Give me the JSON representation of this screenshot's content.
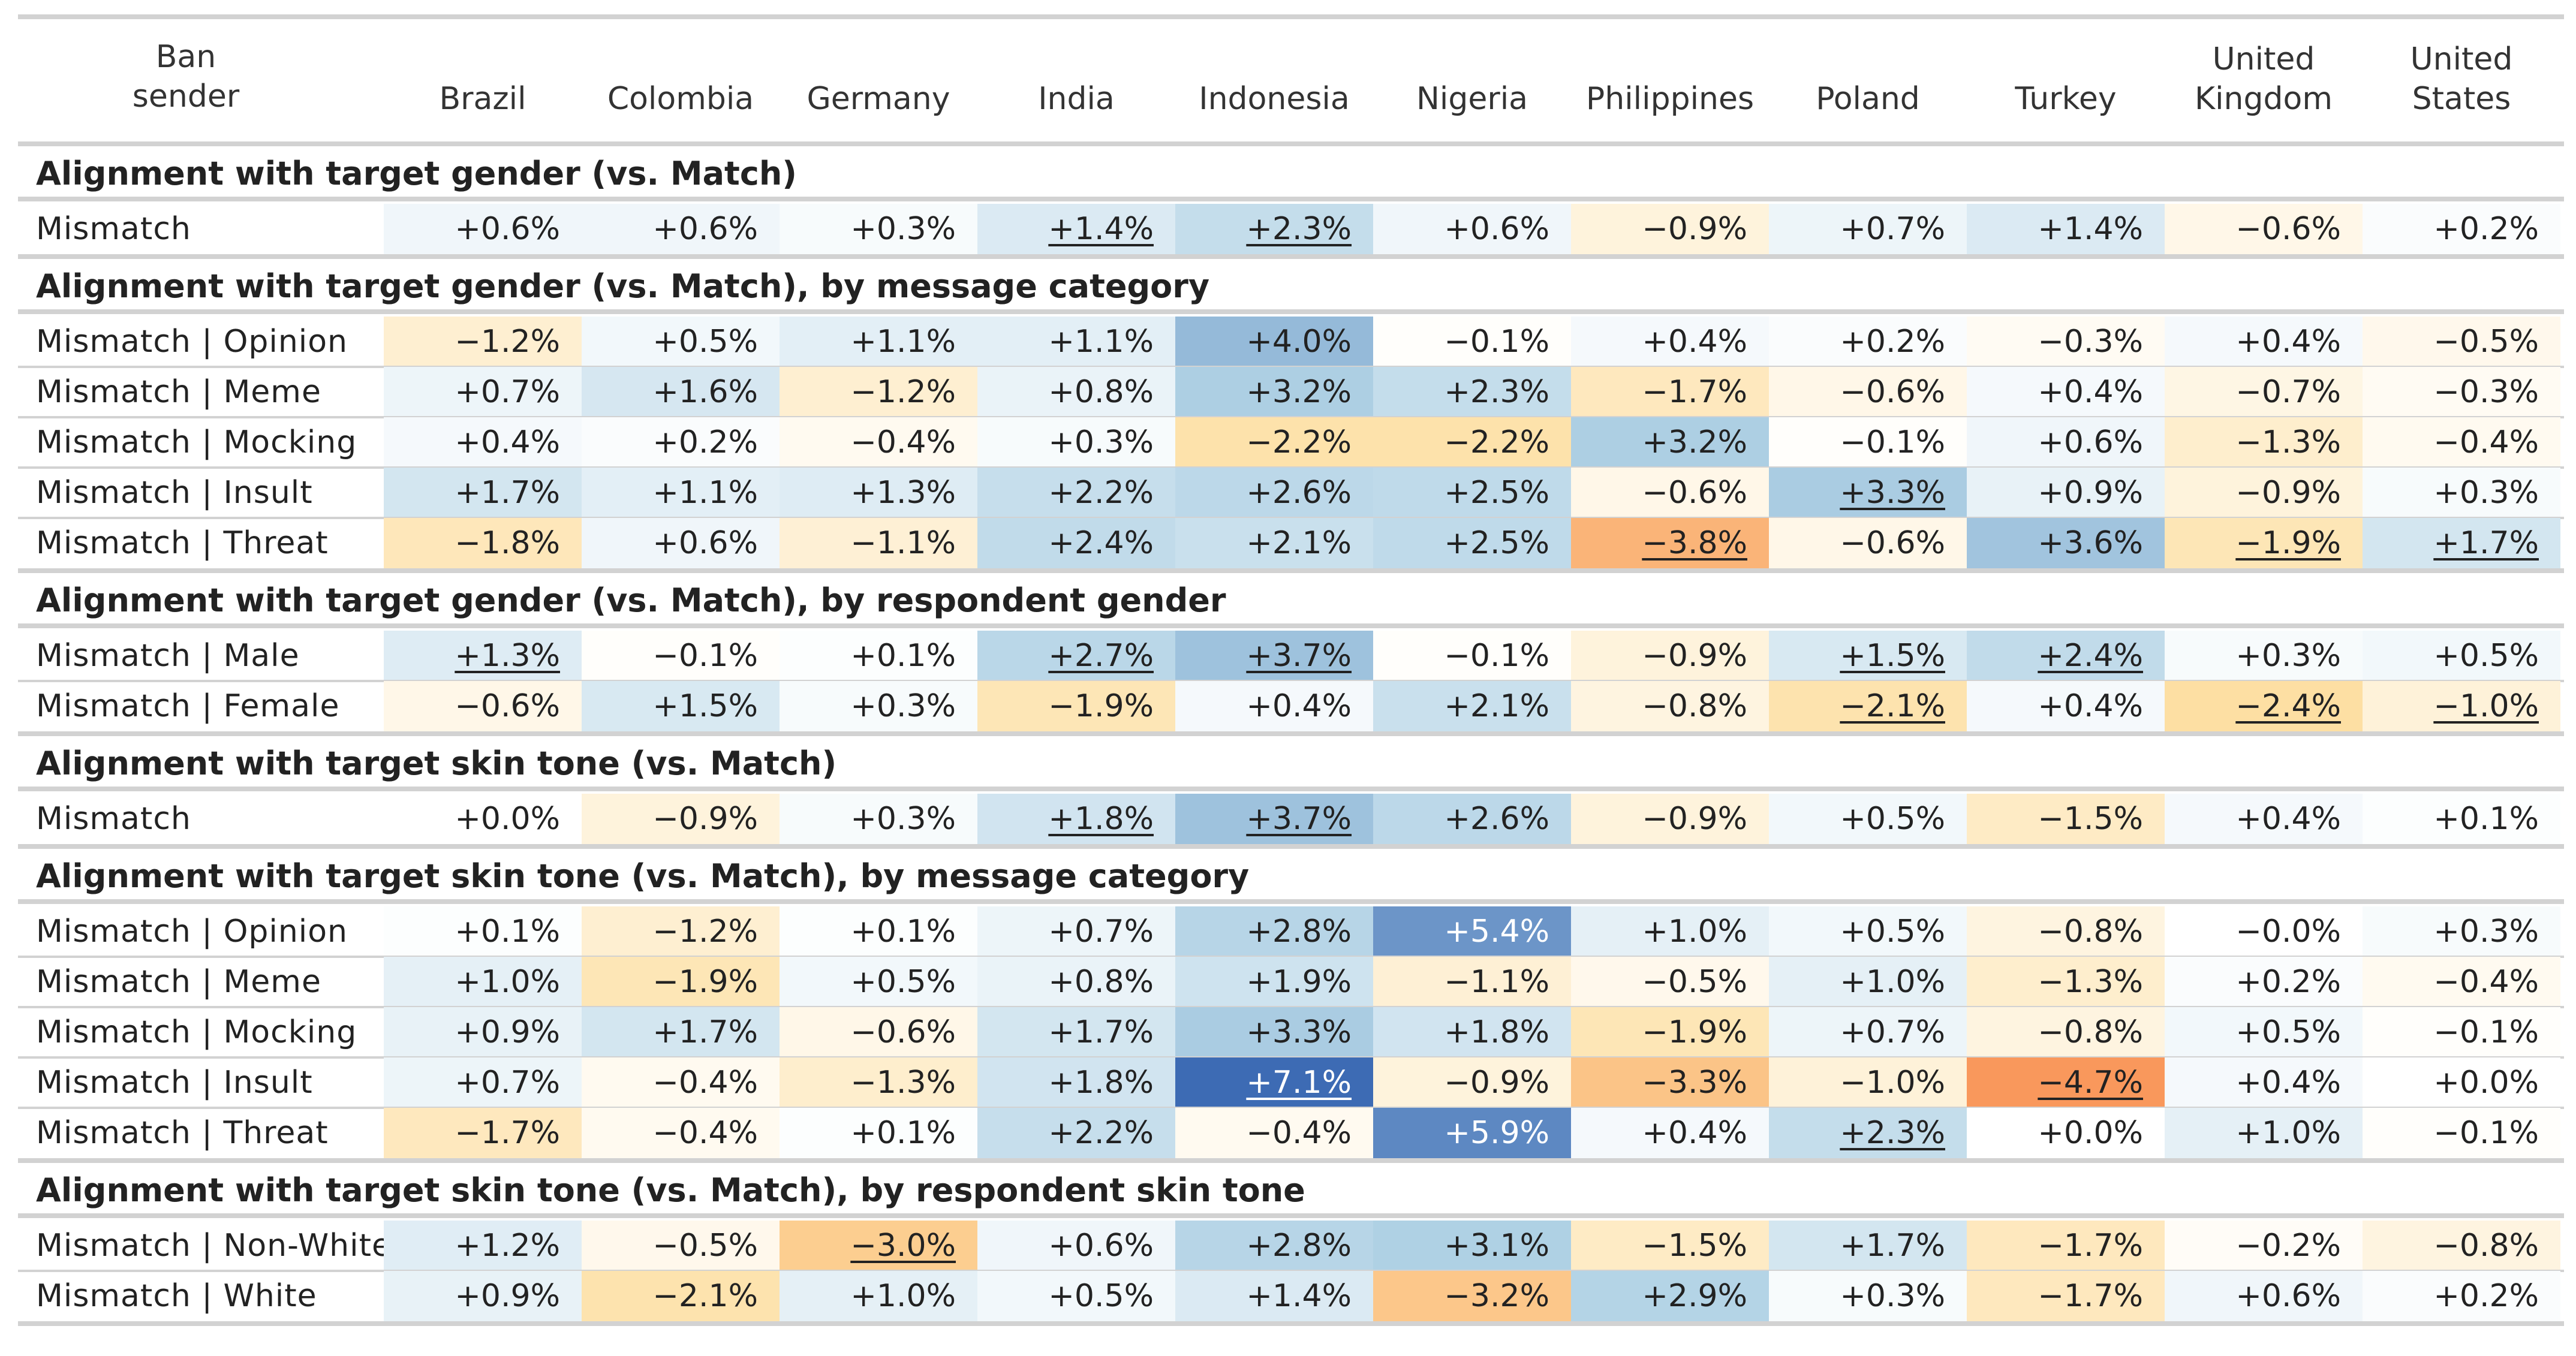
{
  "header": {
    "first_col": [
      "Ban",
      "sender"
    ],
    "countries": [
      [
        "Brazil"
      ],
      [
        "Colombia"
      ],
      [
        "Germany"
      ],
      [
        "India"
      ],
      [
        "Indonesia"
      ],
      [
        "Nigeria"
      ],
      [
        "Philippines"
      ],
      [
        "Poland"
      ],
      [
        "Turkey"
      ],
      [
        "United",
        "Kingdom"
      ],
      [
        "United",
        "States"
      ]
    ]
  },
  "chart_data": {
    "type": "heatmap",
    "columns": [
      "Brazil",
      "Colombia",
      "Germany",
      "India",
      "Indonesia",
      "Nigeria",
      "Philippines",
      "Poland",
      "Turkey",
      "United Kingdom",
      "United States"
    ],
    "color_scale": {
      "negative": "#f77f44",
      "zero": "#ffffff",
      "positive": "#3d6bb4"
    },
    "sections": [
      {
        "title": "Alignment with target gender (vs. Match)",
        "rows": [
          {
            "label": "Mismatch",
            "values": [
              0.6,
              0.6,
              0.3,
              1.4,
              2.3,
              0.6,
              -0.9,
              0.7,
              1.4,
              -0.6,
              0.2
            ],
            "underlined": [
              3,
              4
            ]
          }
        ]
      },
      {
        "title": "Alignment with target gender (vs. Match), by message category",
        "rows": [
          {
            "label": "Mismatch | Opinion",
            "values": [
              -1.2,
              0.5,
              1.1,
              1.1,
              4.0,
              -0.1,
              0.4,
              0.2,
              -0.3,
              0.4,
              -0.5
            ],
            "underlined": []
          },
          {
            "label": "Mismatch | Meme",
            "values": [
              0.7,
              1.6,
              -1.2,
              0.8,
              3.2,
              2.3,
              -1.7,
              -0.6,
              0.4,
              -0.7,
              -0.3
            ],
            "underlined": []
          },
          {
            "label": "Mismatch | Mocking",
            "values": [
              0.4,
              0.2,
              -0.4,
              0.3,
              -2.2,
              -2.2,
              3.2,
              -0.1,
              0.6,
              -1.3,
              -0.4
            ],
            "underlined": []
          },
          {
            "label": "Mismatch | Insult",
            "values": [
              1.7,
              1.1,
              1.3,
              2.2,
              2.6,
              2.5,
              -0.6,
              3.3,
              0.9,
              -0.9,
              0.3
            ],
            "underlined": [
              7
            ]
          },
          {
            "label": "Mismatch | Threat",
            "values": [
              -1.8,
              0.6,
              -1.1,
              2.4,
              2.1,
              2.5,
              -3.8,
              -0.6,
              3.6,
              -1.9,
              1.7
            ],
            "underlined": [
              6,
              9,
              10
            ]
          }
        ]
      },
      {
        "title": "Alignment with target gender (vs. Match), by respondent gender",
        "rows": [
          {
            "label": "Mismatch | Male",
            "values": [
              1.3,
              -0.1,
              0.1,
              2.7,
              3.7,
              -0.1,
              -0.9,
              1.5,
              2.4,
              0.3,
              0.5
            ],
            "underlined": [
              0,
              3,
              4,
              7,
              8
            ]
          },
          {
            "label": "Mismatch | Female",
            "values": [
              -0.6,
              1.5,
              0.3,
              -1.9,
              0.4,
              2.1,
              -0.8,
              -2.1,
              0.4,
              -2.4,
              -1.0
            ],
            "underlined": [
              7,
              9,
              10
            ]
          }
        ]
      },
      {
        "title": "Alignment with target skin tone (vs. Match)",
        "rows": [
          {
            "label": "Mismatch",
            "values": [
              0.0,
              -0.9,
              0.3,
              1.8,
              3.7,
              2.6,
              -0.9,
              0.5,
              -1.5,
              0.4,
              0.1
            ],
            "underlined": [
              3,
              4
            ]
          }
        ]
      },
      {
        "title": "Alignment with target skin tone (vs. Match), by message category",
        "rows": [
          {
            "label": "Mismatch | Opinion",
            "values": [
              0.1,
              -1.2,
              0.1,
              0.7,
              2.8,
              5.4,
              1.0,
              0.5,
              -0.8,
              -0.0,
              0.3
            ],
            "underlined": []
          },
          {
            "label": "Mismatch | Meme",
            "values": [
              1.0,
              -1.9,
              0.5,
              0.8,
              1.9,
              -1.1,
              -0.5,
              1.0,
              -1.3,
              0.2,
              -0.4
            ],
            "underlined": []
          },
          {
            "label": "Mismatch | Mocking",
            "values": [
              0.9,
              1.7,
              -0.6,
              1.7,
              3.3,
              1.8,
              -1.9,
              0.7,
              -0.8,
              0.5,
              -0.1
            ],
            "underlined": []
          },
          {
            "label": "Mismatch | Insult",
            "values": [
              0.7,
              -0.4,
              -1.3,
              1.8,
              7.1,
              -0.9,
              -3.3,
              -1.0,
              -4.7,
              0.4,
              0.0
            ],
            "underlined": [
              4,
              8
            ]
          },
          {
            "label": "Mismatch | Threat",
            "values": [
              -1.7,
              -0.4,
              0.1,
              2.2,
              -0.4,
              5.9,
              0.4,
              2.3,
              0.0,
              1.0,
              -0.1
            ],
            "underlined": [
              7
            ]
          }
        ]
      },
      {
        "title": "Alignment with target skin tone (vs. Match), by respondent skin tone",
        "rows": [
          {
            "label": "Mismatch | Non-White",
            "values": [
              1.2,
              -0.5,
              -3.0,
              0.6,
              2.8,
              3.1,
              -1.5,
              1.7,
              -1.7,
              -0.2,
              -0.8
            ],
            "underlined": [
              2
            ]
          },
          {
            "label": "Mismatch | White",
            "values": [
              0.9,
              -2.1,
              1.0,
              0.5,
              1.4,
              -3.2,
              2.9,
              0.3,
              -1.7,
              0.6,
              0.2
            ],
            "underlined": []
          }
        ]
      }
    ]
  }
}
